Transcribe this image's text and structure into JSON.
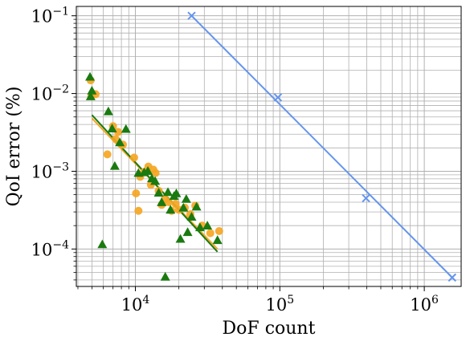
{
  "chart_data": {
    "type": "scatter",
    "xlabel": "DoF count",
    "ylabel": "QoI error (%)",
    "xscale": "log",
    "yscale": "log",
    "xlim": [
      3900,
      1800000
    ],
    "ylim": [
      3.3e-05,
      0.132
    ],
    "grid": "major and minor",
    "x_ticks": [
      {
        "value": 10000,
        "base": "10",
        "exp": "4"
      },
      {
        "value": 100000,
        "base": "10",
        "exp": "5"
      },
      {
        "value": 1000000,
        "base": "10",
        "exp": "6"
      }
    ],
    "y_ticks": [
      {
        "value": 0.0001,
        "base": "10",
        "exp": "−4"
      },
      {
        "value": 0.001,
        "base": "10",
        "exp": "−3"
      },
      {
        "value": 0.01,
        "base": "10",
        "exp": "−2"
      },
      {
        "value": 0.1,
        "base": "10",
        "exp": "−1"
      }
    ],
    "series": [
      {
        "marker": "x",
        "color": "#6495ed",
        "points": [
          [
            24500,
            0.1
          ],
          [
            97000,
            0.0089
          ],
          [
            395000,
            0.00045
          ],
          [
            1560000,
            4.3e-05
          ]
        ],
        "fit": [
          [
            24500,
            0.1
          ],
          [
            1560000,
            4.3e-05
          ]
        ]
      },
      {
        "marker": "circle",
        "color": "#f5a623",
        "points": [
          [
            4900,
            0.0148
          ],
          [
            4950,
            0.0092
          ],
          [
            5300,
            0.0098
          ],
          [
            6400,
            0.00165
          ],
          [
            7000,
            0.0038
          ],
          [
            7300,
            0.0026
          ],
          [
            7600,
            0.0032
          ],
          [
            8200,
            0.0022
          ],
          [
            9800,
            0.0015
          ],
          [
            10100,
            0.00052
          ],
          [
            10500,
            0.00031
          ],
          [
            10800,
            0.00085
          ],
          [
            11500,
            0.00098
          ],
          [
            12300,
            0.00115
          ],
          [
            12800,
            0.00067
          ],
          [
            13300,
            0.00105
          ],
          [
            13800,
            0.00095
          ],
          [
            14500,
            0.00056
          ],
          [
            15200,
            0.00037
          ],
          [
            16000,
            0.00044
          ],
          [
            17000,
            0.0004
          ],
          [
            17800,
            0.00031
          ],
          [
            19000,
            0.00038
          ],
          [
            20000,
            0.00032
          ],
          [
            22000,
            0.00034
          ],
          [
            24000,
            0.00028
          ],
          [
            26000,
            0.00036
          ],
          [
            29000,
            0.0002
          ],
          [
            33000,
            0.00016
          ],
          [
            38000,
            0.00017
          ]
        ],
        "fit": [
          [
            5000,
            0.0048
          ],
          [
            37000,
            0.0001
          ]
        ]
      },
      {
        "marker": "triangle",
        "color": "#1a7a10",
        "points": [
          [
            4850,
            0.0164
          ],
          [
            4900,
            0.0092
          ],
          [
            5000,
            0.0109
          ],
          [
            5900,
            0.000115
          ],
          [
            6500,
            0.0059
          ],
          [
            6900,
            0.00355
          ],
          [
            7200,
            0.00117
          ],
          [
            7800,
            0.00235
          ],
          [
            8600,
            0.0035
          ],
          [
            10500,
            0.00095
          ],
          [
            11500,
            0.00097
          ],
          [
            12200,
            0.00101
          ],
          [
            13000,
            0.00081
          ],
          [
            13700,
            0.00075
          ],
          [
            14500,
            0.00053
          ],
          [
            15200,
            0.0004
          ],
          [
            16100,
            4.4e-05
          ],
          [
            16800,
            0.00054
          ],
          [
            17500,
            0.00032
          ],
          [
            18500,
            0.00048
          ],
          [
            19200,
            0.00052
          ],
          [
            20500,
            0.000135
          ],
          [
            21500,
            0.00034
          ],
          [
            22500,
            0.00044
          ],
          [
            23000,
            0.000165
          ],
          [
            24500,
            0.00026
          ],
          [
            26500,
            0.00035
          ],
          [
            28000,
            0.00019
          ],
          [
            31500,
            0.0002
          ],
          [
            37000,
            0.00013
          ]
        ],
        "fit": [
          [
            5000,
            0.0053
          ],
          [
            37000,
            9.2e-05
          ]
        ]
      }
    ]
  }
}
